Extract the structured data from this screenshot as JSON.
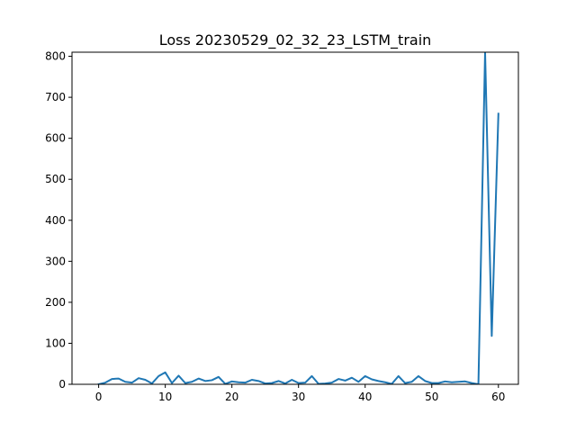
{
  "chart_data": {
    "type": "line",
    "title": "Loss 20230529_02_32_23_LSTM_train",
    "xlabel": "",
    "ylabel": "",
    "xlim": [
      -4,
      63
    ],
    "ylim": [
      0,
      810
    ],
    "grid": false,
    "legend": "none",
    "x_ticks": [
      0,
      10,
      20,
      30,
      40,
      50,
      60
    ],
    "x_tick_labels": [
      "0",
      "10",
      "20",
      "30",
      "40",
      "50",
      "60"
    ],
    "y_ticks": [
      0,
      100,
      200,
      300,
      400,
      500,
      600,
      700,
      800
    ],
    "y_tick_labels": [
      "0",
      "100",
      "200",
      "300",
      "400",
      "500",
      "600",
      "700",
      "800"
    ],
    "series": [
      {
        "color": "#1f77b4",
        "x": [
          0,
          1,
          2,
          3,
          4,
          5,
          6,
          7,
          8,
          9,
          10,
          11,
          12,
          13,
          14,
          15,
          16,
          17,
          18,
          19,
          20,
          21,
          22,
          23,
          24,
          25,
          26,
          27,
          28,
          29,
          30,
          31,
          32,
          33,
          34,
          35,
          36,
          37,
          38,
          39,
          40,
          41,
          42,
          43,
          44,
          45,
          46,
          47,
          48,
          49,
          50,
          51,
          52,
          53,
          54,
          55,
          56,
          57,
          58,
          59,
          60
        ],
        "values": [
          0,
          4,
          13,
          14,
          6,
          4,
          15,
          11,
          2,
          20,
          29,
          3,
          21,
          3,
          6,
          14,
          8,
          10,
          18,
          1,
          7,
          5,
          4,
          11,
          8,
          2,
          3,
          8,
          2,
          11,
          3,
          4,
          20,
          1,
          2,
          4,
          13,
          9,
          16,
          6,
          20,
          12,
          8,
          5,
          1,
          20,
          3,
          6,
          20,
          8,
          3,
          3,
          7,
          5,
          6,
          7,
          3,
          0,
          810,
          118,
          660
        ]
      }
    ]
  }
}
